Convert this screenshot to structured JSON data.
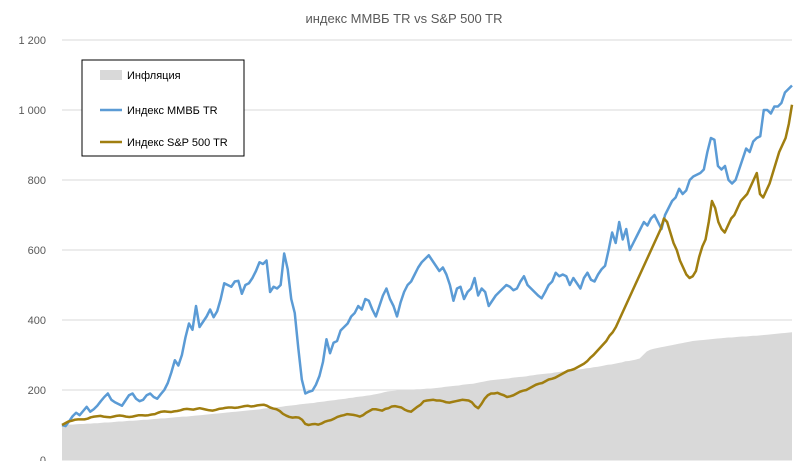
{
  "chart_data": {
    "type": "line",
    "title": "индекс ММВБ TR vs S&P 500 TR",
    "ylim": [
      0,
      1200
    ],
    "yticks": [
      "1 200",
      "1 000",
      "800",
      "600",
      "400",
      "200",
      "0"
    ],
    "ytick_values": [
      1200,
      1000,
      800,
      600,
      400,
      200,
      0
    ],
    "grid": true,
    "legend_position": "top-left",
    "series": [
      {
        "name": "Инфляция",
        "kind": "area",
        "color": "#d9d9d9",
        "values": [
          100,
          100,
          101,
          101,
          102,
          103,
          103,
          104,
          104,
          105,
          105,
          106,
          107,
          107,
          108,
          109,
          110,
          110,
          111,
          112,
          112,
          113,
          114,
          115,
          115,
          116,
          117,
          118,
          119,
          119,
          120,
          121,
          122,
          123,
          124,
          124,
          125,
          126,
          127,
          128,
          129,
          130,
          131,
          132,
          133,
          134,
          135,
          136,
          137,
          138,
          139,
          140,
          141,
          142,
          143,
          144,
          145,
          147,
          148,
          149,
          150,
          151,
          152,
          154,
          155,
          156,
          157,
          159,
          160,
          161,
          162,
          163,
          165,
          166,
          167,
          169,
          170,
          171,
          173,
          174,
          175,
          177,
          178,
          180,
          181,
          182,
          184,
          185,
          187,
          189,
          191,
          194,
          196,
          197,
          198,
          199,
          200,
          200,
          201,
          201,
          202,
          202,
          203,
          204,
          204,
          205,
          206,
          207,
          209,
          210,
          211,
          212,
          213,
          215,
          216,
          217,
          218,
          220,
          222,
          224,
          226,
          228,
          229,
          230,
          231,
          232,
          233,
          235,
          236,
          237,
          238,
          239,
          241,
          242,
          244,
          245,
          246,
          247,
          248,
          250,
          251,
          253,
          254,
          255,
          256,
          258,
          259,
          260,
          262,
          263,
          265,
          266,
          268,
          270,
          272,
          273,
          275,
          277,
          279,
          282,
          283,
          285,
          287,
          290,
          300,
          310,
          315,
          318,
          320,
          322,
          324,
          326,
          328,
          330,
          332,
          334,
          336,
          338,
          340,
          341,
          342,
          343,
          344,
          345,
          346,
          347,
          348,
          349,
          350,
          350,
          351,
          352,
          353,
          353,
          354,
          355,
          355,
          356,
          357,
          358,
          359,
          360,
          361,
          362,
          363,
          364,
          365
        ]
      },
      {
        "name": "Индекс ММВБ TR",
        "kind": "line",
        "color": "#5b9bd5",
        "values": [
          100,
          97,
          110,
          125,
          135,
          128,
          140,
          152,
          138,
          145,
          155,
          168,
          180,
          190,
          172,
          165,
          160,
          155,
          170,
          185,
          190,
          175,
          168,
          172,
          185,
          190,
          180,
          175,
          188,
          200,
          220,
          250,
          285,
          270,
          300,
          350,
          390,
          372,
          440,
          380,
          395,
          410,
          430,
          408,
          425,
          460,
          505,
          500,
          495,
          510,
          512,
          475,
          500,
          505,
          520,
          540,
          565,
          560,
          570,
          480,
          495,
          490,
          500,
          590,
          545,
          460,
          420,
          320,
          230,
          190,
          195,
          198,
          215,
          240,
          280,
          345,
          305,
          335,
          340,
          370,
          380,
          390,
          410,
          420,
          440,
          430,
          460,
          455,
          430,
          410,
          440,
          470,
          490,
          460,
          440,
          410,
          450,
          480,
          500,
          510,
          530,
          550,
          565,
          575,
          585,
          570,
          555,
          540,
          550,
          530,
          500,
          455,
          490,
          495,
          460,
          480,
          490,
          520,
          470,
          490,
          480,
          440,
          455,
          470,
          480,
          490,
          500,
          495,
          485,
          490,
          510,
          525,
          500,
          490,
          480,
          470,
          462,
          480,
          500,
          510,
          535,
          525,
          530,
          525,
          500,
          520,
          505,
          490,
          520,
          535,
          515,
          510,
          530,
          545,
          555,
          600,
          650,
          620,
          680,
          630,
          660,
          600,
          620,
          640,
          660,
          680,
          670,
          690,
          700,
          680,
          660,
          700,
          720,
          740,
          750,
          775,
          760,
          770,
          800,
          810,
          815,
          820,
          830,
          880,
          920,
          915,
          840,
          830,
          840,
          800,
          790,
          800,
          830,
          860,
          890,
          880,
          910,
          920,
          925,
          1000,
          1000,
          990,
          1010,
          1010,
          1020,
          1050,
          1060,
          1070
        ]
      },
      {
        "name": "Индекс S&P 500 TR",
        "kind": "line",
        "color": "#a07e10",
        "values": [
          100,
          105,
          110,
          112,
          115,
          116,
          116,
          116,
          118,
          122,
          124,
          125,
          126,
          124,
          123,
          122,
          124,
          126,
          127,
          126,
          124,
          123,
          124,
          126,
          128,
          128,
          127,
          128,
          130,
          131,
          135,
          138,
          139,
          138,
          137,
          139,
          140,
          142,
          145,
          146,
          145,
          144,
          146,
          148,
          146,
          144,
          142,
          141,
          143,
          146,
          147,
          149,
          150,
          150,
          149,
          150,
          152,
          154,
          155,
          153,
          154,
          156,
          157,
          158,
          155,
          150,
          147,
          145,
          140,
          132,
          127,
          123,
          121,
          122,
          121,
          115,
          103,
          100,
          102,
          103,
          101,
          104,
          109,
          112,
          114,
          118,
          123,
          126,
          128,
          131,
          130,
          129,
          127,
          124,
          128,
          135,
          140,
          145,
          145,
          143,
          141,
          146,
          148,
          153,
          154,
          152,
          150,
          144,
          140,
          138,
          145,
          152,
          158,
          168,
          170,
          171,
          172,
          170,
          170,
          168,
          165,
          164,
          166,
          168,
          170,
          172,
          171,
          170,
          165,
          154,
          148,
          160,
          175,
          185,
          190,
          190,
          192,
          188,
          185,
          180,
          182,
          185,
          190,
          195,
          198,
          200,
          205,
          210,
          215,
          218,
          220,
          225,
          230,
          232,
          235,
          240,
          245,
          250,
          255,
          257,
          260,
          265,
          270,
          275,
          282,
          292,
          300,
          310,
          320,
          330,
          340,
          355,
          365,
          380,
          400,
          420,
          440,
          460,
          480,
          500,
          520,
          540,
          560,
          580,
          600,
          620,
          640,
          660,
          690,
          680,
          650,
          620,
          600,
          570,
          550,
          530,
          520,
          525,
          540,
          580,
          610,
          630,
          680,
          740,
          720,
          680,
          660,
          650,
          670,
          690,
          700,
          720,
          740,
          750,
          760,
          780,
          800,
          820,
          760,
          750,
          770,
          790,
          820,
          850,
          880,
          900,
          920,
          960,
          1015
        ]
      }
    ]
  }
}
